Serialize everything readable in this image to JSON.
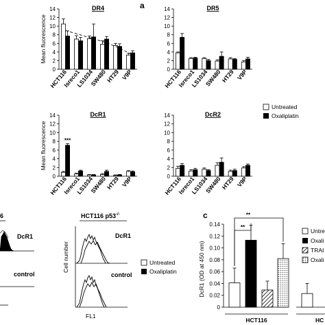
{
  "panel_labels": {
    "a": "a",
    "c": "c"
  },
  "legend": {
    "untreated": "Untreated",
    "oxaliplatin": "Oxaliplatin"
  },
  "flow": {
    "left_title": "6",
    "title": "HCT116 p53",
    "title_sup": "-/-",
    "ylabel": "Cell number",
    "xlabel": "FL1",
    "row1": "DcR1",
    "row2": "control"
  },
  "panel_c_legend": [
    "Untre",
    "Oxali",
    "TRAI",
    "Oxali"
  ],
  "chart_data": [
    {
      "type": "bar",
      "title": "DR4",
      "ylabel": "Mean fluorescence",
      "ylim": [
        0,
        14
      ],
      "yticks": [
        0,
        2,
        4,
        6,
        8,
        10,
        12,
        14
      ],
      "categories": [
        "HCT116",
        "Isreco1",
        "LS1034",
        "SW480",
        "HT29",
        "V9P"
      ],
      "series": [
        {
          "name": "Untreated",
          "values": [
            10.5,
            7.0,
            7.1,
            5.8,
            5.5,
            3.3
          ],
          "errors": [
            1.2,
            0.8,
            0.6,
            0.8,
            0.5,
            0.4
          ]
        },
        {
          "name": "Oxaliplatin",
          "values": [
            7.7,
            6.6,
            7.5,
            7.0,
            5.3,
            3.8
          ],
          "errors": [
            1.2,
            0.8,
            3.0,
            0.6,
            0.6,
            0.5
          ]
        }
      ],
      "trend": true,
      "annotations": []
    },
    {
      "type": "bar",
      "title": "DR5",
      "ylabel": "",
      "ylim": [
        0,
        14
      ],
      "yticks": [
        0,
        2,
        4,
        6,
        8,
        10,
        12,
        14
      ],
      "categories": [
        "HCT116",
        "Isreco1",
        "LS1034",
        "SW480",
        "HT29",
        "V9P"
      ],
      "series": [
        {
          "name": "Untreated",
          "values": [
            3.8,
            2.5,
            2.5,
            1.9,
            2.4,
            1.7
          ],
          "errors": [
            0.2,
            0.2,
            0.2,
            0.3,
            0.3,
            0.3
          ]
        },
        {
          "name": "Oxaliplatin",
          "values": [
            7.4,
            2.6,
            2.0,
            3.0,
            2.3,
            2.4
          ],
          "errors": [
            0.9,
            0.2,
            0.3,
            1.0,
            0.2,
            0.4
          ]
        }
      ],
      "trend": false,
      "annotations": []
    },
    {
      "type": "bar",
      "title": "DcR1",
      "ylabel": "Mean fluorescence",
      "ylim": [
        0,
        14
      ],
      "yticks": [
        0,
        2,
        4,
        6,
        8,
        10,
        12,
        14
      ],
      "categories": [
        "HCT116",
        "Isreco1",
        "LS1034",
        "SW480",
        "HT29",
        "V9P"
      ],
      "series": [
        {
          "name": "Untreated",
          "values": [
            0.9,
            0.5,
            0.3,
            0.4,
            0.2,
            1.1
          ],
          "errors": [
            0.2,
            0.2,
            0.1,
            0.2,
            0.1,
            0.2
          ]
        },
        {
          "name": "Oxaliplatin",
          "values": [
            7.1,
            1.2,
            0.3,
            1.1,
            0.3,
            1.0
          ],
          "errors": [
            0.4,
            0.2,
            0.1,
            0.3,
            0.1,
            0.2
          ]
        }
      ],
      "trend": false,
      "annotations": [
        {
          "category": "HCT116",
          "series": "Oxaliplatin",
          "text": "***"
        }
      ]
    },
    {
      "type": "bar",
      "title": "DcR2",
      "ylabel": "",
      "ylim": [
        0,
        14
      ],
      "yticks": [
        0,
        2,
        4,
        6,
        8,
        10,
        12,
        14
      ],
      "categories": [
        "HCT116",
        "Isreco1",
        "LS1034",
        "SW480",
        "HT29",
        "V9P"
      ],
      "series": [
        {
          "name": "Untreated",
          "values": [
            1.8,
            1.2,
            1.6,
            2.5,
            1.1,
            1.9
          ],
          "errors": [
            0.5,
            0.3,
            0.3,
            0.6,
            0.3,
            0.3
          ]
        },
        {
          "name": "Oxaliplatin",
          "values": [
            2.5,
            1.5,
            1.3,
            3.2,
            1.3,
            2.5
          ],
          "errors": [
            0.4,
            0.3,
            0.2,
            1.0,
            0.3,
            0.3
          ]
        }
      ],
      "trend": false,
      "annotations": []
    },
    {
      "type": "bar",
      "title": "",
      "ylabel": "DcR1 (OD at 450 nm)",
      "ylim": [
        0,
        0.14
      ],
      "yticks": [
        0,
        0.02,
        0.04,
        0.06,
        0.08,
        0.1,
        0.12,
        0.14
      ],
      "yticklabels": [
        "0",
        "0.02",
        "0.04",
        "0.06",
        "0.08",
        "0.10",
        "0.12",
        "0.14"
      ],
      "group_label": "HCT116",
      "group_label_2": "HC",
      "bars": [
        {
          "value": 0.041,
          "error": 0.025,
          "style": "untreated"
        },
        {
          "value": 0.113,
          "error": 0.025,
          "style": "oxaliplatin"
        },
        {
          "value": 0.029,
          "error": 0.015,
          "style": "trail"
        },
        {
          "value": 0.082,
          "error": 0.025,
          "style": "oxali-trail"
        },
        {
          "value": 0.023,
          "error": 0.017,
          "style": "untreated"
        }
      ],
      "significance": [
        {
          "from": 0,
          "to": 1,
          "text": "**"
        },
        {
          "from": 0,
          "to": 3,
          "text": "**"
        }
      ]
    }
  ]
}
